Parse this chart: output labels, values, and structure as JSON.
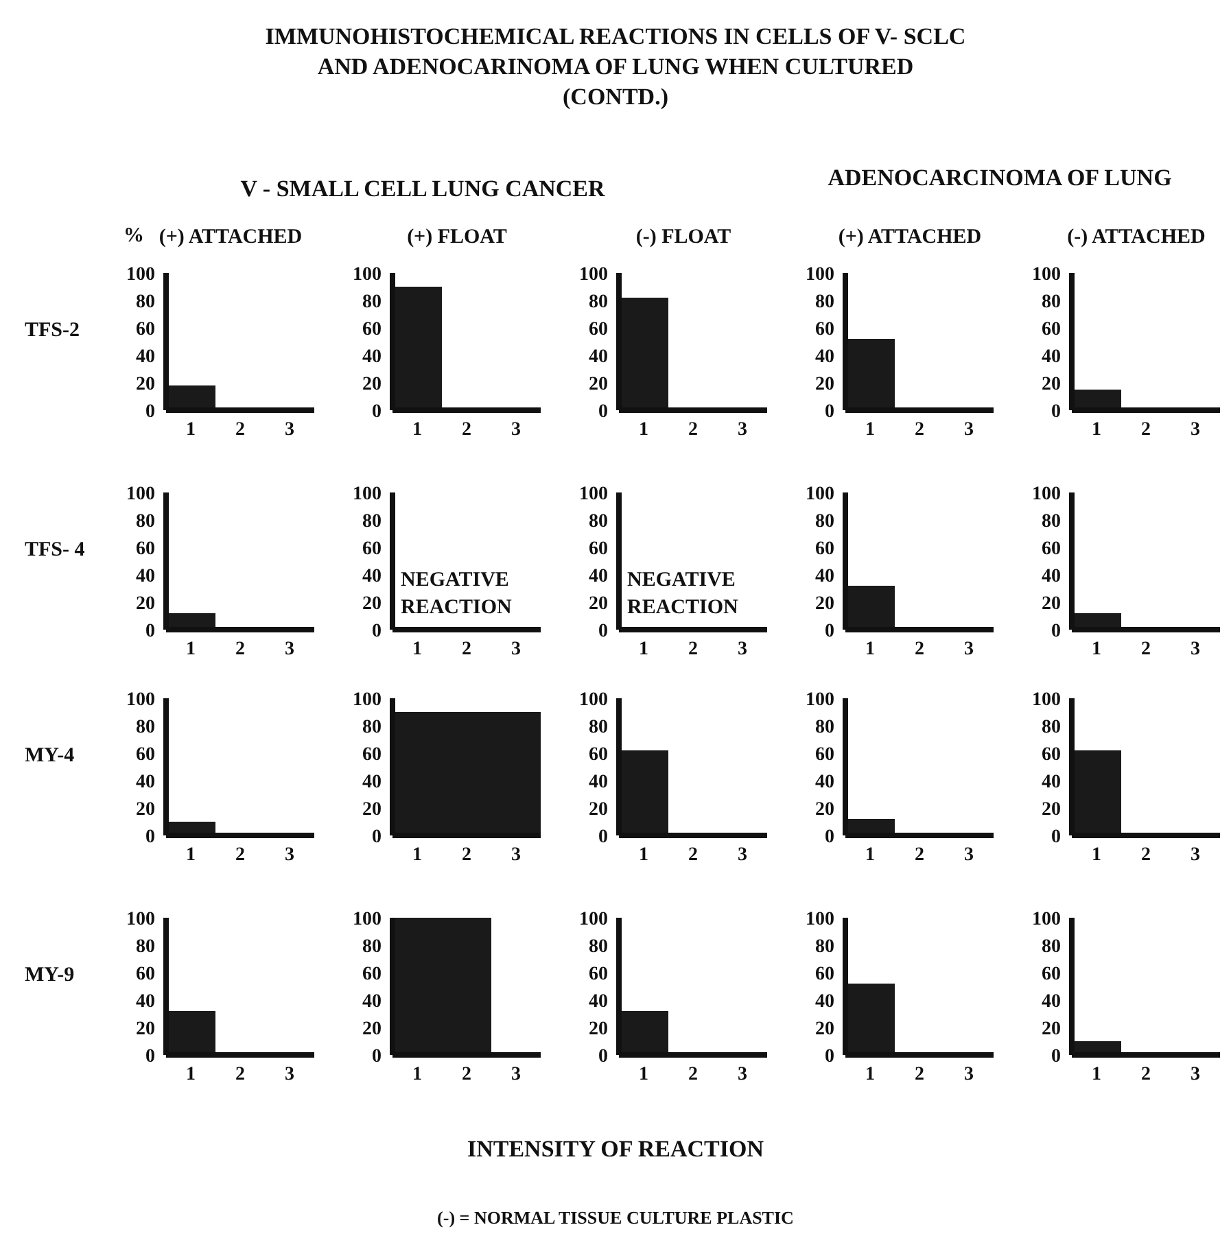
{
  "chart_data": [
    {
      "type": "bar",
      "title": "(+) ATTACHED",
      "ylabel": "TFS-2",
      "categories": [
        "1",
        "2",
        "3"
      ],
      "values": [
        18,
        0,
        0
      ],
      "color": "#1a1a1a",
      "ylim": [
        0,
        100
      ],
      "yticks": [
        0,
        20,
        40,
        60,
        80,
        100
      ],
      "annotations": [
        "IMMUNOHISTOCHEMICAL REACTIONS IN CELLS OF V- SCLC\nAND ADENOCARINOMA OF LUNG WHEN CULTURED\n(CONTD.)",
        "V - SMALL CELL LUNG CANCER",
        "ADENOCARCINOMA OF LUNG",
        "%",
        "INTENSITY OF REACTION",
        "(-) = NORMAL TISSUE CULTURE PLASTIC"
      ]
    },
    {
      "type": "bar",
      "title": "(+) FLOAT",
      "categories": [
        "1",
        "2",
        "3"
      ],
      "values": [
        90,
        0,
        0
      ],
      "color": "#1a1a1a",
      "ylim": [
        0,
        100
      ],
      "yticks": [
        0,
        20,
        40,
        60,
        80,
        100
      ]
    },
    {
      "type": "bar",
      "title": "(-)  FLOAT",
      "categories": [
        "1",
        "2",
        "3"
      ],
      "values": [
        82,
        0,
        0
      ],
      "color": "#1a1a1a",
      "ylim": [
        0,
        100
      ],
      "yticks": [
        0,
        20,
        40,
        60,
        80,
        100
      ]
    },
    {
      "type": "bar",
      "title": "(+) ATTACHED",
      "categories": [
        "1",
        "2",
        "3"
      ],
      "values": [
        52,
        0,
        0
      ],
      "color": "#1a1a1a",
      "ylim": [
        0,
        100
      ],
      "yticks": [
        0,
        20,
        40,
        60,
        80,
        100
      ]
    },
    {
      "type": "bar",
      "title": "(-) ATTACHED",
      "categories": [
        "1",
        "2",
        "3"
      ],
      "values": [
        15,
        0,
        0
      ],
      "color": "#1a1a1a",
      "ylim": [
        0,
        100
      ],
      "yticks": [
        0,
        20,
        40,
        60,
        80,
        100
      ]
    },
    {
      "type": "bar",
      "ylabel": "TFS- 4",
      "categories": [
        "1",
        "2",
        "3"
      ],
      "values": [
        12,
        0,
        0
      ],
      "color": "#1a1a1a",
      "ylim": [
        0,
        100
      ],
      "yticks": [
        0,
        20,
        40,
        60,
        80,
        100
      ]
    },
    {
      "type": "bar",
      "categories": [
        "1",
        "2",
        "3"
      ],
      "values": [
        0,
        0,
        0
      ],
      "color": "#1a1a1a",
      "ylim": [
        0,
        100
      ],
      "yticks": [
        0,
        20,
        40,
        60,
        80,
        100
      ],
      "annotations": [
        "NEGATIVE REACTION"
      ]
    },
    {
      "type": "bar",
      "categories": [
        "1",
        "2",
        "3"
      ],
      "values": [
        0,
        0,
        0
      ],
      "color": "#1a1a1a",
      "ylim": [
        0,
        100
      ],
      "yticks": [
        0,
        20,
        40,
        60,
        80,
        100
      ],
      "annotations": [
        "NEGATIVE REACTION"
      ]
    },
    {
      "type": "bar",
      "categories": [
        "1",
        "2",
        "3"
      ],
      "values": [
        32,
        0,
        0
      ],
      "color": "#1a1a1a",
      "ylim": [
        0,
        100
      ],
      "yticks": [
        0,
        20,
        40,
        60,
        80,
        100
      ]
    },
    {
      "type": "bar",
      "categories": [
        "1",
        "2",
        "3"
      ],
      "values": [
        12,
        0,
        0
      ],
      "color": "#1a1a1a",
      "ylim": [
        0,
        100
      ],
      "yticks": [
        0,
        20,
        40,
        60,
        80,
        100
      ]
    },
    {
      "type": "bar",
      "ylabel": "MY-4",
      "categories": [
        "1",
        "2",
        "3"
      ],
      "values": [
        10,
        0,
        0
      ],
      "color": "#1a1a1a",
      "ylim": [
        0,
        100
      ],
      "yticks": [
        0,
        20,
        40,
        60,
        80,
        100
      ]
    },
    {
      "type": "bar",
      "categories": [
        "1",
        "2",
        "3"
      ],
      "values": [
        90,
        90,
        90
      ],
      "color": "#1a1a1a",
      "ylim": [
        0,
        100
      ],
      "yticks": [
        0,
        20,
        40,
        60,
        80,
        100
      ]
    },
    {
      "type": "bar",
      "categories": [
        "1",
        "2",
        "3"
      ],
      "values": [
        62,
        0,
        0
      ],
      "color": "#1a1a1a",
      "ylim": [
        0,
        100
      ],
      "yticks": [
        0,
        20,
        40,
        60,
        80,
        100
      ]
    },
    {
      "type": "bar",
      "categories": [
        "1",
        "2",
        "3"
      ],
      "values": [
        12,
        0,
        0
      ],
      "color": "#1a1a1a",
      "ylim": [
        0,
        100
      ],
      "yticks": [
        0,
        20,
        40,
        60,
        80,
        100
      ]
    },
    {
      "type": "bar",
      "categories": [
        "1",
        "2",
        "3"
      ],
      "values": [
        62,
        0,
        0
      ],
      "color": "#1a1a1a",
      "ylim": [
        0,
        100
      ],
      "yticks": [
        0,
        20,
        40,
        60,
        80,
        100
      ]
    },
    {
      "type": "bar",
      "ylabel": "MY-9",
      "categories": [
        "1",
        "2",
        "3"
      ],
      "values": [
        32,
        0,
        0
      ],
      "color": "#1a1a1a",
      "ylim": [
        0,
        100
      ],
      "yticks": [
        0,
        20,
        40,
        60,
        80,
        100
      ]
    },
    {
      "type": "bar",
      "categories": [
        "1",
        "2",
        "3"
      ],
      "values": [
        100,
        100,
        0
      ],
      "color": "#1a1a1a",
      "ylim": [
        0,
        100
      ],
      "yticks": [
        0,
        20,
        40,
        60,
        80,
        100
      ]
    },
    {
      "type": "bar",
      "categories": [
        "1",
        "2",
        "3"
      ],
      "values": [
        32,
        0,
        0
      ],
      "color": "#1a1a1a",
      "ylim": [
        0,
        100
      ],
      "yticks": [
        0,
        20,
        40,
        60,
        80,
        100
      ]
    },
    {
      "type": "bar",
      "categories": [
        "1",
        "2",
        "3"
      ],
      "values": [
        52,
        0,
        0
      ],
      "color": "#1a1a1a",
      "ylim": [
        0,
        100
      ],
      "yticks": [
        0,
        20,
        40,
        60,
        80,
        100
      ]
    },
    {
      "type": "bar",
      "categories": [
        "1",
        "2",
        "3"
      ],
      "values": [
        10,
        0,
        0
      ],
      "color": "#1a1a1a",
      "ylim": [
        0,
        100
      ],
      "yticks": [
        0,
        20,
        40,
        60,
        80,
        100
      ]
    }
  ]
}
